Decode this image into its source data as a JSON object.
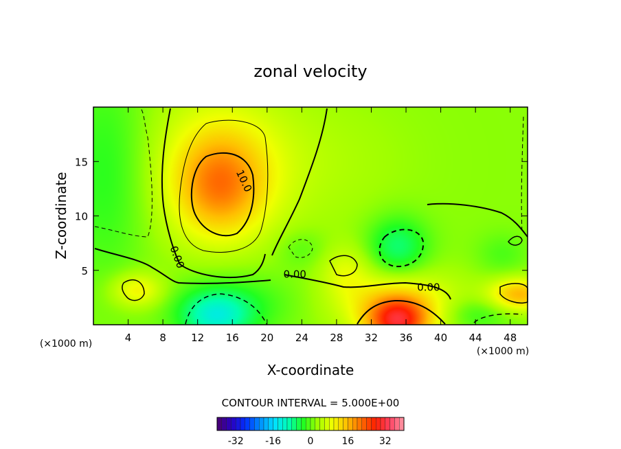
{
  "chart_data": {
    "type": "contour",
    "title": "zonal velocity",
    "xlabel": "X-coordinate",
    "ylabel": "Z-coordinate",
    "x_unit": "(×1000 m)",
    "z_unit": "(×1000 m)",
    "xlim": [
      0,
      50
    ],
    "ylim": [
      0,
      20
    ],
    "x_ticks": [
      4,
      8,
      12,
      16,
      20,
      24,
      28,
      32,
      36,
      40,
      44,
      48
    ],
    "y_ticks": [
      5,
      10,
      15
    ],
    "contour_interval_text": "CONTOUR INTERVAL = 5.000E+00",
    "contour_labels": [
      {
        "text": "10.0",
        "x": 17.3,
        "y": 13.2
      },
      {
        "text": "0.00",
        "x": 9.6,
        "y": 6.2
      },
      {
        "text": "0.00",
        "x": 23.2,
        "y": 4.6
      },
      {
        "text": "0.00",
        "x": 38.6,
        "y": 3.4
      }
    ],
    "field_features": [
      {
        "x": 14.5,
        "y": 12.8,
        "value": 12,
        "rx": 5,
        "ry": 4.5
      },
      {
        "x": 14.5,
        "y": 14.5,
        "value": 8,
        "rx": 8,
        "ry": 7
      },
      {
        "x": 35,
        "y": 0.3,
        "value": 22,
        "rx": 3.5,
        "ry": 2.2
      },
      {
        "x": 35,
        "y": 2,
        "value": 10,
        "rx": 7,
        "ry": 3
      },
      {
        "x": 35,
        "y": 7.1,
        "value": -9,
        "rx": 3.5,
        "ry": 2.8
      },
      {
        "x": 14,
        "y": 0.8,
        "value": -11,
        "rx": 4,
        "ry": 2.2
      },
      {
        "x": 16,
        "y": 2,
        "value": -5,
        "rx": 7,
        "ry": 3
      },
      {
        "x": 1.5,
        "y": 14,
        "value": -5,
        "rx": 5,
        "ry": 10
      },
      {
        "x": 5,
        "y": 3.2,
        "value": 9,
        "rx": 3,
        "ry": 1.6
      },
      {
        "x": 49,
        "y": 2.8,
        "value": 14,
        "rx": 3.5,
        "ry": 1.5
      },
      {
        "x": 44,
        "y": 1,
        "value": -5,
        "rx": 4,
        "ry": 1.6
      },
      {
        "x": 47,
        "y": 6.5,
        "value": -3,
        "rx": 3,
        "ry": 2
      },
      {
        "x": 24,
        "y": 7,
        "value": -3,
        "rx": 3,
        "ry": 1.8
      },
      {
        "x": 29,
        "y": 5,
        "value": 5,
        "rx": 3,
        "ry": 2.5
      },
      {
        "x": 26,
        "y": 15,
        "value": 2,
        "rx": 10,
        "ry": 6
      }
    ],
    "colorbar": {
      "ticks": [
        -32,
        -16,
        0,
        16,
        32
      ],
      "tick_labels": [
        "-32",
        "-16",
        "0",
        "16",
        "32"
      ],
      "range": [
        -40,
        40
      ],
      "colors": [
        "#4b006e",
        "#2a00c0",
        "#0030ff",
        "#0090ff",
        "#00e0ff",
        "#00ffb0",
        "#20ff20",
        "#a0ff00",
        "#f0ff00",
        "#ffc000",
        "#ff7000",
        "#ff2000",
        "#ff4060",
        "#ff9aa8"
      ]
    }
  }
}
